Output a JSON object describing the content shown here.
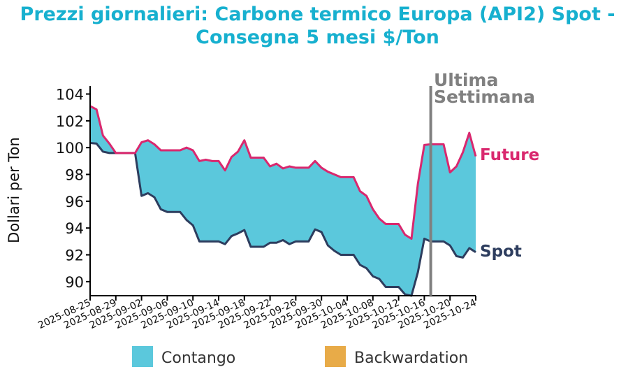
{
  "title_line1": "Prezzi giornalieri: Carbone termico Europa (API2) Spot -",
  "title_line2": "Consegna 5 mesi $/Ton",
  "colors": {
    "title": "#17b0cf",
    "future": "#d9286e",
    "spot": "#2d3d5e",
    "contango": "#5bc8dc",
    "backwardation": "#e8ab48",
    "marker": "#808080"
  },
  "chart_data": {
    "type": "area",
    "ylabel": "Dollari per Ton",
    "ylim": [
      88.95,
      104.6
    ],
    "yticks": [
      90,
      92,
      94,
      96,
      98,
      100,
      102,
      104
    ],
    "start_date": "2025-08-25",
    "xtick_labels": [
      "2025-08-25",
      "2025-08-29",
      "2025-09-02",
      "2025-09-06",
      "2025-09-10",
      "2025-09-14",
      "2025-09-18",
      "2025-09-22",
      "2025-09-26",
      "2025-09-30",
      "2025-10-04",
      "2025-10-08",
      "2025-10-12",
      "2025-10-16",
      "2025-10-20",
      "2025-10-24"
    ],
    "series": [
      {
        "name": "Future",
        "values": [
          103.1,
          102.85,
          100.9,
          100.3,
          99.6,
          99.6,
          99.6,
          99.6,
          100.4,
          100.55,
          100.25,
          99.8,
          99.8,
          99.8,
          99.8,
          100.0,
          99.8,
          99.0,
          99.1,
          99.0,
          99.0,
          98.3,
          99.3,
          99.7,
          100.55,
          99.25,
          99.25,
          99.25,
          98.6,
          98.8,
          98.45,
          98.6,
          98.5,
          98.5,
          98.5,
          99.0,
          98.5,
          98.2,
          98.0,
          97.8,
          97.8,
          97.8,
          96.75,
          96.4,
          95.4,
          94.7,
          94.3,
          94.3,
          94.3,
          93.5,
          93.2,
          97.3,
          100.2,
          100.25,
          100.25,
          100.25,
          98.15,
          98.6,
          99.65,
          101.1,
          99.35
        ]
      },
      {
        "name": "Spot",
        "values": [
          100.35,
          100.3,
          99.7,
          99.6,
          99.6,
          99.6,
          99.6,
          99.6,
          96.4,
          96.6,
          96.3,
          95.4,
          95.2,
          95.2,
          95.2,
          94.6,
          94.2,
          93.0,
          93.0,
          93.0,
          93.0,
          92.8,
          93.4,
          93.6,
          93.85,
          92.6,
          92.6,
          92.6,
          92.9,
          92.9,
          93.1,
          92.8,
          93.0,
          93.0,
          93.0,
          93.9,
          93.7,
          92.7,
          92.3,
          92.0,
          92.0,
          92.0,
          91.25,
          91.0,
          90.4,
          90.2,
          89.6,
          89.6,
          89.6,
          89.05,
          88.95,
          90.7,
          93.2,
          93.0,
          93.0,
          93.0,
          92.7,
          91.9,
          91.8,
          92.5,
          92.2
        ]
      }
    ],
    "annotation": {
      "label_line1": "Ultima",
      "label_line2": "Settimana",
      "date": "2025-10-17",
      "day_index": 53
    },
    "legend": {
      "placement": "bottom",
      "entries": [
        "Contango",
        "Backwardation"
      ]
    }
  }
}
